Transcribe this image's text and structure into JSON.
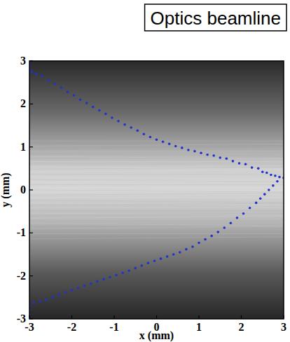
{
  "chart_data": {
    "type": "scatter",
    "title": "Optics beamline",
    "x_label": "x (mm)",
    "y_label": "y (mm)",
    "xlim": [
      -3,
      3
    ],
    "ylim": [
      -3,
      3
    ],
    "xticks": [
      -3,
      -2,
      -1,
      0,
      1,
      2,
      3
    ],
    "yticks": [
      -3,
      -2,
      -1,
      0,
      1,
      2,
      3
    ],
    "x": [
      -3,
      -3,
      -3,
      -2.95,
      -2.85,
      -2.7,
      -2.55,
      -2.4,
      -2.25,
      -2.1,
      -1.95,
      -1.8,
      -1.65,
      -1.5,
      -1.35,
      -1.2,
      -1.05,
      -0.9,
      -0.75,
      -0.6,
      -0.45,
      -0.3,
      -0.15,
      0,
      0.15,
      0.3,
      0.45,
      0.6,
      0.75,
      0.9,
      1.05,
      1.2,
      1.35,
      1.5,
      1.65,
      1.8,
      1.95,
      2.1,
      2.25,
      2.4,
      2.5,
      2.6,
      2.7,
      2.8,
      2.9,
      3.0,
      2.85,
      2.75,
      2.65,
      2.55,
      2.45,
      2.35,
      2.2,
      2.05,
      1.9,
      1.75,
      1.6,
      1.45,
      1.3,
      1.15,
      1.0,
      0.85,
      0.7,
      0.55,
      0.4,
      0.25,
      0.1,
      -0.05,
      -0.2,
      -0.35,
      -0.5,
      -0.65,
      -0.8,
      -0.95,
      -1.1,
      -1.25,
      -1.4,
      -1.55,
      -1.7,
      -1.85,
      -2.0,
      -2.15,
      -2.3,
      -2.45,
      -2.6,
      -2.75,
      -2.9,
      -3,
      -3,
      -3,
      -3
    ],
    "series": [
      {
        "color": "#2233cc",
        "marker": "dot",
        "values": [
          3.0,
          2.9,
          2.8,
          2.75,
          2.7,
          2.65,
          2.55,
          2.47,
          2.38,
          2.28,
          2.2,
          2.1,
          2.02,
          1.93,
          1.85,
          1.77,
          1.68,
          1.6,
          1.52,
          1.45,
          1.38,
          1.3,
          1.23,
          1.17,
          1.12,
          1.07,
          1.02,
          0.98,
          0.93,
          0.9,
          0.86,
          0.82,
          0.8,
          0.75,
          0.73,
          0.67,
          0.62,
          0.6,
          0.52,
          0.5,
          0.42,
          0.4,
          0.35,
          0.33,
          0.3,
          0.28,
          0.2,
          0.1,
          0.0,
          -0.1,
          -0.2,
          -0.3,
          -0.42,
          -0.55,
          -0.65,
          -0.77,
          -0.88,
          -0.98,
          -1.07,
          -1.15,
          -1.23,
          -1.32,
          -1.38,
          -1.45,
          -1.5,
          -1.55,
          -1.6,
          -1.65,
          -1.7,
          -1.76,
          -1.82,
          -1.88,
          -1.93,
          -1.98,
          -2.03,
          -2.08,
          -2.13,
          -2.18,
          -2.23,
          -2.28,
          -2.33,
          -2.38,
          -2.44,
          -2.5,
          -2.55,
          -2.59,
          -2.62,
          -2.7,
          -2.8,
          -2.9,
          -3.0
        ]
      }
    ]
  }
}
